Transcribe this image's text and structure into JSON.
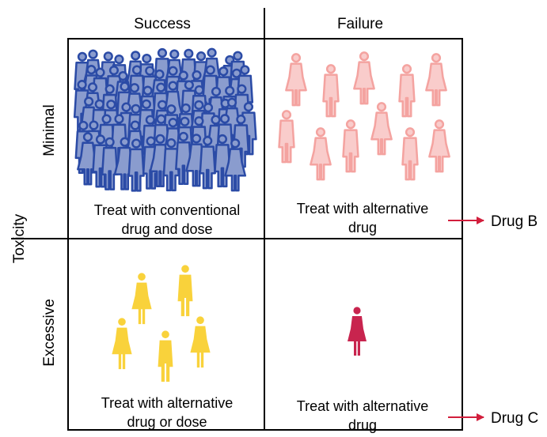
{
  "columns": {
    "success": "Success",
    "failure": "Failure"
  },
  "axis": {
    "label": "Toxicity",
    "minimal": "Minimal",
    "excessive": "Excessive"
  },
  "quadrants": {
    "top_left": {
      "line1": "Treat with conventional",
      "line2": "drug and dose",
      "people": 80,
      "color": "#2b4ba6"
    },
    "top_right": {
      "line1": "Treat with alternative",
      "line2": "drug",
      "people": 13,
      "color": "#f4a3a0"
    },
    "bottom_left": {
      "line1": "Treat with alternative",
      "line2": "drug or dose",
      "people": 5,
      "color": "#f9d23b"
    },
    "bottom_right": {
      "line1": "Treat with alternative",
      "line2": "drug",
      "people": 1,
      "color": "#c8244e"
    }
  },
  "outcomes": {
    "drug_b": "Drug B",
    "drug_c": "Drug C",
    "arrow_color": "#d21e3c"
  }
}
